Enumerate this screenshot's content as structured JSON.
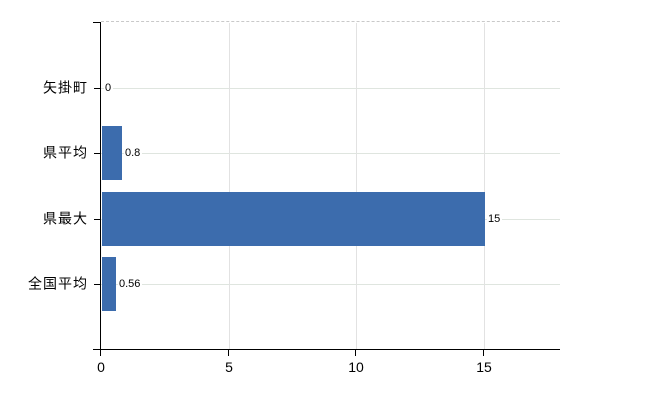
{
  "chart_data": {
    "type": "bar",
    "orientation": "horizontal",
    "title": "",
    "xlabel": "",
    "ylabel": "",
    "categories": [
      "矢掛町",
      "県平均",
      "県最大",
      "全国平均"
    ],
    "values": [
      0,
      0.8,
      15,
      0.56
    ],
    "value_labels": [
      "0",
      "0.8",
      "15",
      "0.56"
    ],
    "x_ticks": [
      0,
      5,
      10,
      15
    ],
    "x_tick_labels": [
      "0",
      "5",
      "10",
      "15"
    ],
    "xlim": [
      0,
      18
    ],
    "grid": true,
    "legend": false,
    "bar_color": "#3c6cad",
    "colors": {
      "background": "#ffffff",
      "axis": "#000000",
      "text": "#000000",
      "gridline_vertical": "#e2e2e2",
      "gridline_horizontal": "#dfe5df",
      "top_border_dashed": "#c9c9c9"
    }
  }
}
